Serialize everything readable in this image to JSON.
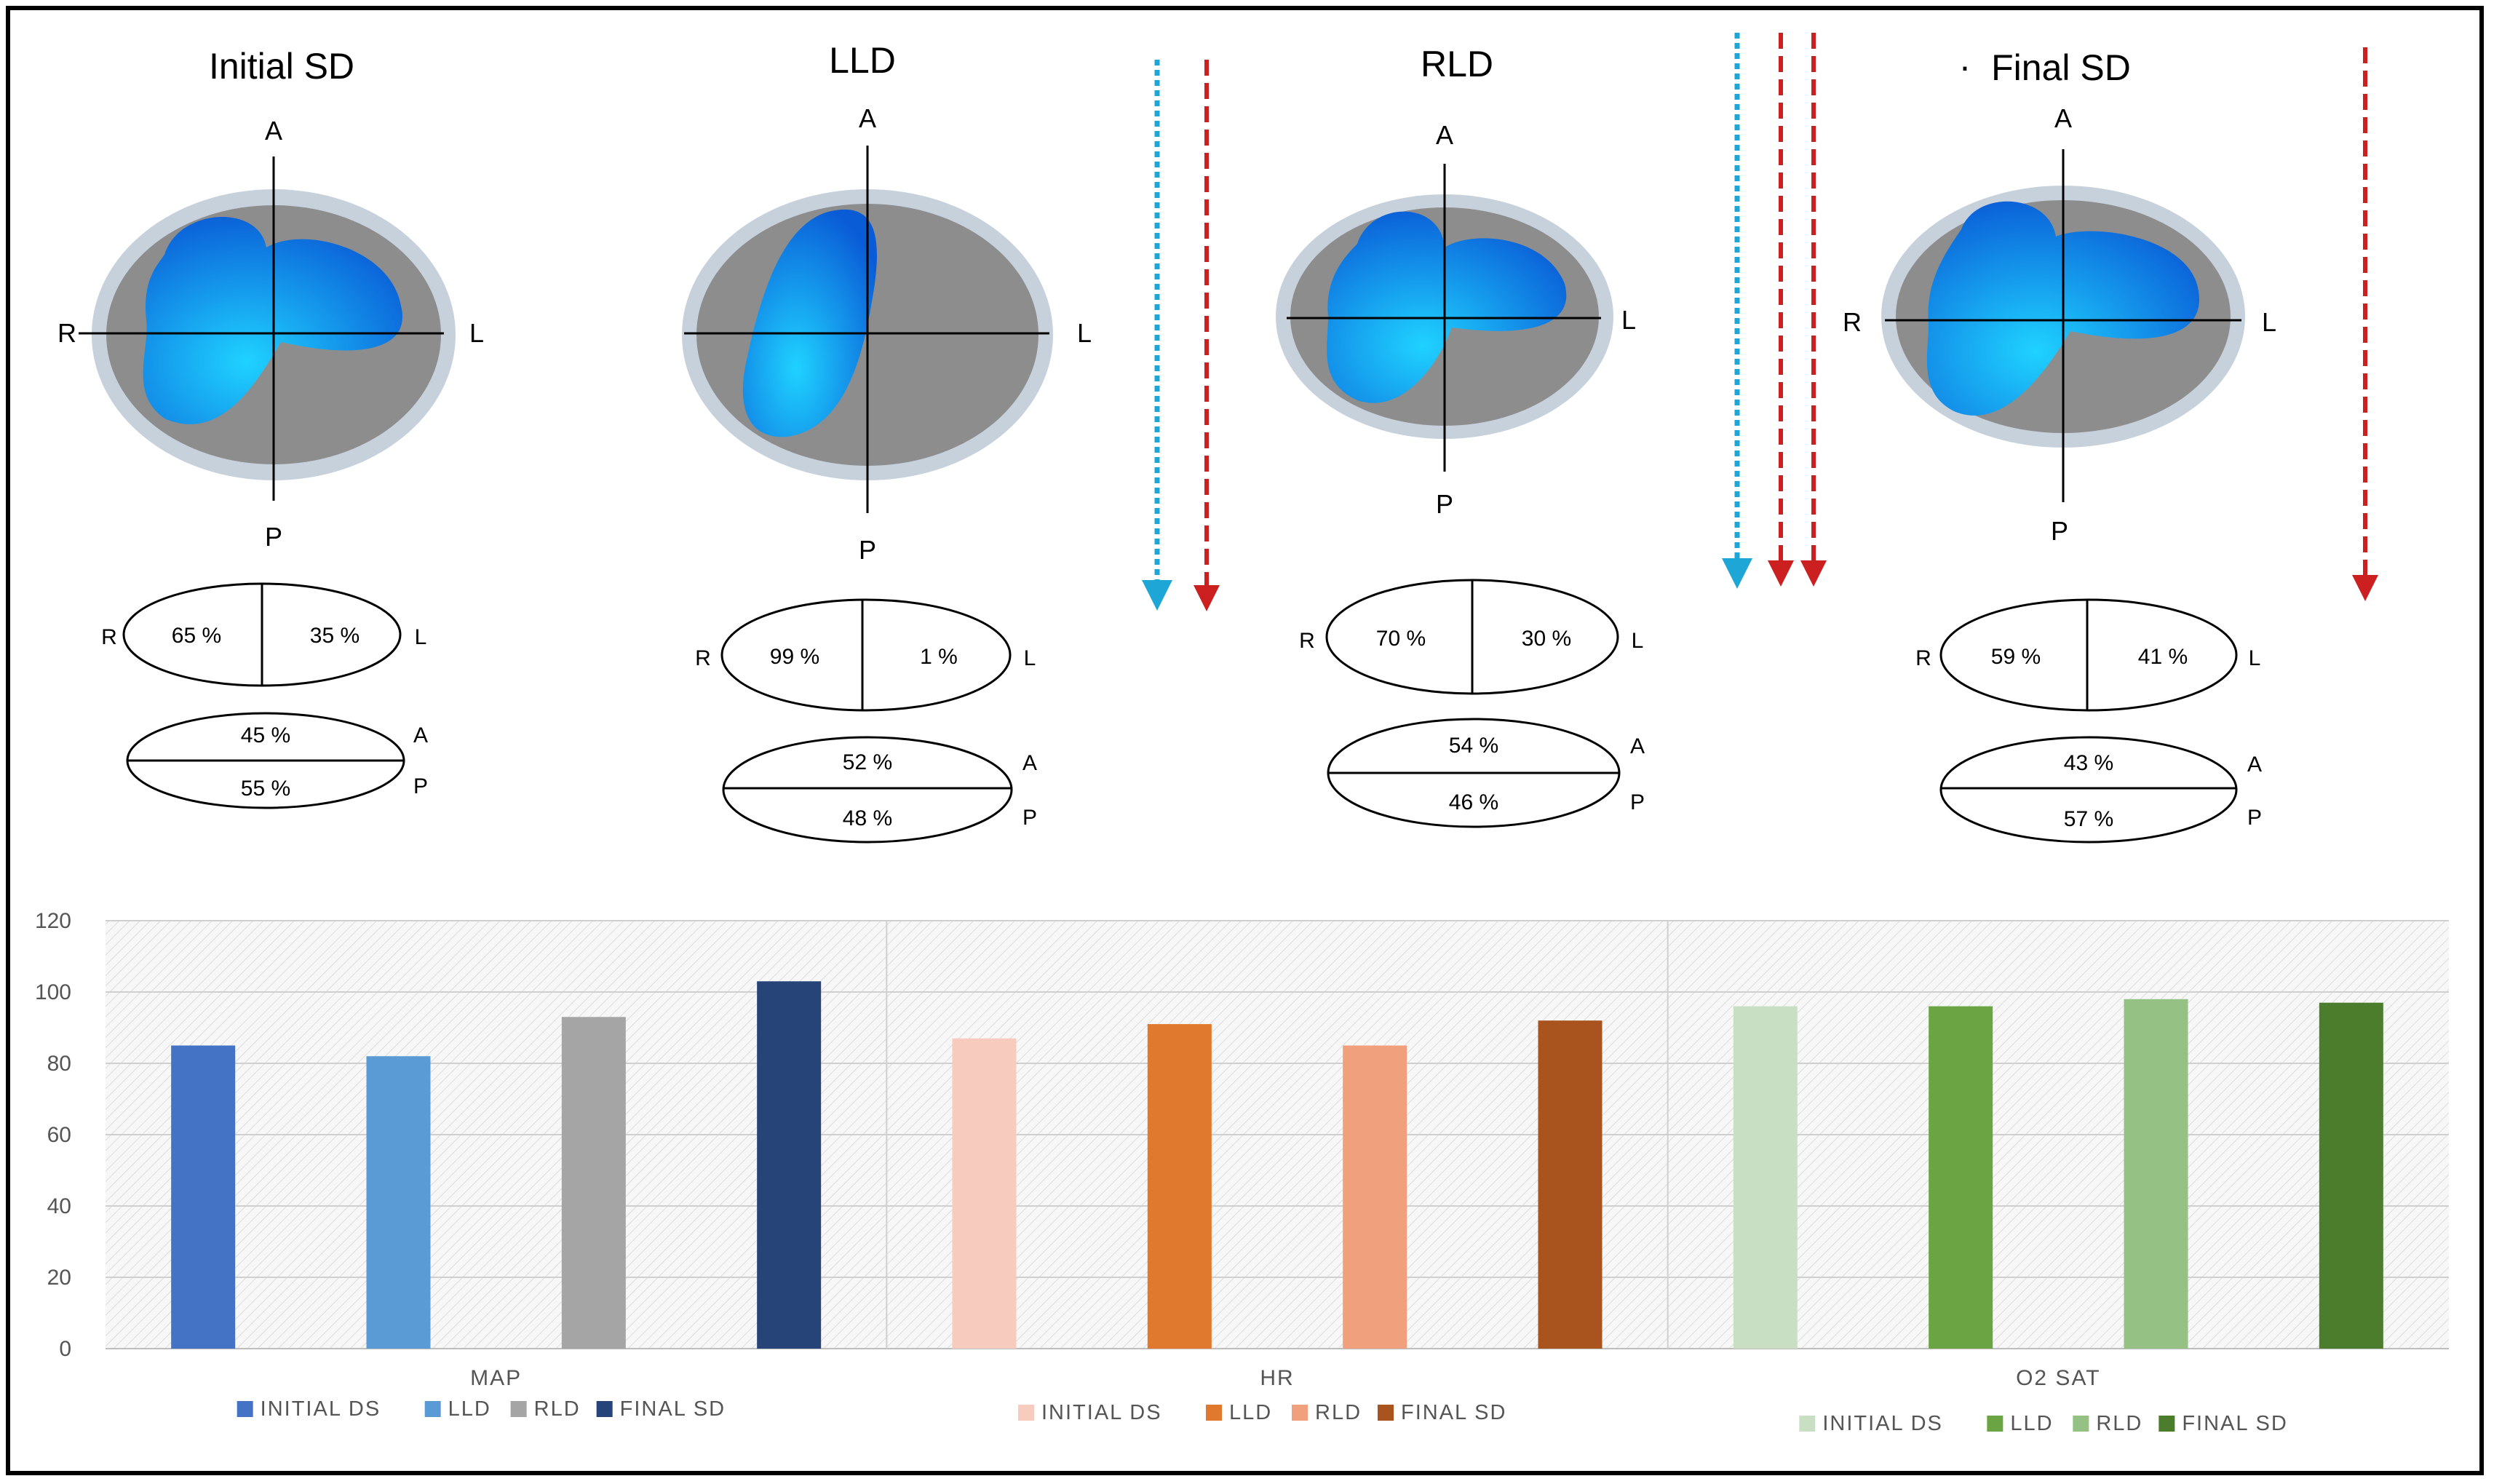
{
  "colors": {
    "lung_light": "#1fd2ff",
    "lung_dark": "#0a5bd6",
    "thorax": "#8d8d8d",
    "thorax_ring": "#c7d1dc",
    "arrow_blue": "#1ea6d6",
    "arrow_red": "#cc1f1f"
  },
  "panels": [
    {
      "title": "Initial SD",
      "prefix": "",
      "axes": {
        "a": "A",
        "p": "P",
        "r": "R",
        "l": "L"
      },
      "rl": {
        "r": "65 %",
        "l": "35 %"
      },
      "ap": {
        "a": "45 %",
        "p": "55 %"
      },
      "shape": "bilobe"
    },
    {
      "title": "LLD",
      "prefix": "",
      "axes": {
        "a": "A",
        "p": "P",
        "r": "R",
        "l": "L"
      },
      "rl": {
        "r": "99 %",
        "l": "1 %"
      },
      "ap": {
        "a": "52 %",
        "p": "48 %"
      },
      "shape": "right-only"
    },
    {
      "title": "RLD",
      "prefix": "",
      "axes": {
        "a": "A",
        "p": "P",
        "r": "R",
        "l": "L"
      },
      "rl": {
        "r": "70 %",
        "l": "30 %"
      },
      "ap": {
        "a": "54 %",
        "p": "46 %"
      },
      "shape": "bilobe"
    },
    {
      "title": "Final SD",
      "prefix": "·",
      "axes": {
        "a": "A",
        "p": "P",
        "r": "R",
        "l": "L"
      },
      "rl": {
        "r": "59 %",
        "l": "41 %"
      },
      "ap": {
        "a": "43 %",
        "p": "57 %"
      },
      "shape": "bilobe"
    }
  ],
  "chart_data": {
    "type": "bar",
    "ylim": [
      0,
      120
    ],
    "yticks": [
      0,
      20,
      40,
      60,
      80,
      100,
      120
    ],
    "grid": true,
    "groups": [
      {
        "name": "MAP",
        "series": [
          {
            "name": "INITIAL DS",
            "value": 85,
            "color": "#4472c4"
          },
          {
            "name": "LLD",
            "value": 82,
            "color": "#5b9bd5"
          },
          {
            "name": "RLD",
            "value": 93,
            "color": "#a5a5a5"
          },
          {
            "name": "FINAL SD",
            "value": 103,
            "color": "#264478"
          }
        ]
      },
      {
        "name": "HR",
        "series": [
          {
            "name": "INITIAL DS",
            "value": 87,
            "color": "#f8cbbf"
          },
          {
            "name": "LLD",
            "value": 91,
            "color": "#e0782e"
          },
          {
            "name": "RLD",
            "value": 85,
            "color": "#f0a07c"
          },
          {
            "name": "FINAL SD",
            "value": 92,
            "color": "#a9531f"
          }
        ]
      },
      {
        "name": "O2 SAT",
        "series": [
          {
            "name": "INITIAL DS",
            "value": 96,
            "color": "#c9dfc4"
          },
          {
            "name": "LLD",
            "value": 96,
            "color": "#6aa443"
          },
          {
            "name": "RLD",
            "value": 98,
            "color": "#95c184"
          },
          {
            "name": "FINAL SD",
            "value": 97,
            "color": "#4b7d2c"
          }
        ]
      }
    ]
  }
}
